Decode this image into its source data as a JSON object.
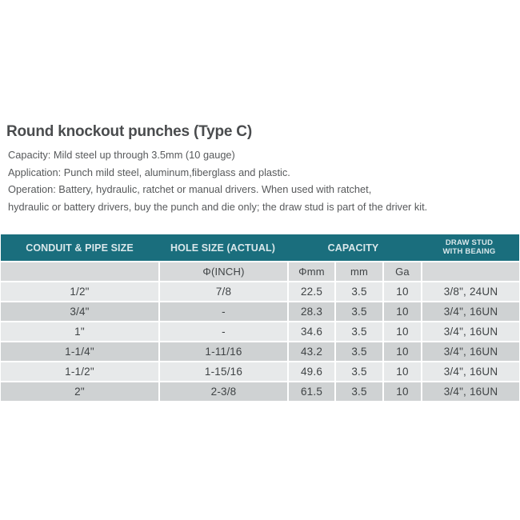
{
  "page": {
    "title": "Round knockout punches (Type C)",
    "description_lines": [
      "Capacity:  Mild steel up through 3.5mm (10 gauge)",
      "Application: Punch mild steel, aluminum,fiberglass and plastic.",
      "Operation:  Battery, hydraulic, ratchet or manual drivers. When used with ratchet,",
      "hydraulic or battery drivers, buy the punch and die only; the draw stud is part of the driver kit."
    ]
  },
  "colors": {
    "header_bg": "#1a6e7d",
    "header_text": "#d9e7ea",
    "subheader_bg": "#d7d9da",
    "row_light_bg": "#e7e9ea",
    "row_dark_bg": "#cfd2d3",
    "body_text": "#57595b",
    "cell_text": "#3f4345"
  },
  "table": {
    "headers": {
      "conduit": "CONDUIT & PIPE SIZE",
      "hole_size": "HOLE SIZE (ACTUAL)",
      "capacity": "CAPACITY",
      "draw_stud_line1": "DRAW STUD",
      "draw_stud_line2": "WITH BEAING"
    },
    "subheaders": [
      "",
      "Φ(INCH)",
      "Φmm",
      "mm",
      "Ga",
      ""
    ],
    "rows": [
      [
        "1/2\"",
        "7/8",
        "22.5",
        "3.5",
        "10",
        "3/8\", 24UN"
      ],
      [
        "3/4\"",
        "-",
        "28.3",
        "3.5",
        "10",
        "3/4\", 16UN"
      ],
      [
        "1\"",
        "-",
        "34.6",
        "3.5",
        "10",
        "3/4\", 16UN"
      ],
      [
        "1-1/4\"",
        "1-11/16",
        "43.2",
        "3.5",
        "10",
        "3/4\", 16UN"
      ],
      [
        "1-1/2\"",
        "1-15/16",
        "49.6",
        "3.5",
        "10",
        "3/4\", 16UN"
      ],
      [
        "2\"",
        "2-3/8",
        "61.5",
        "3.5",
        "10",
        "3/4\", 16UN"
      ]
    ]
  }
}
